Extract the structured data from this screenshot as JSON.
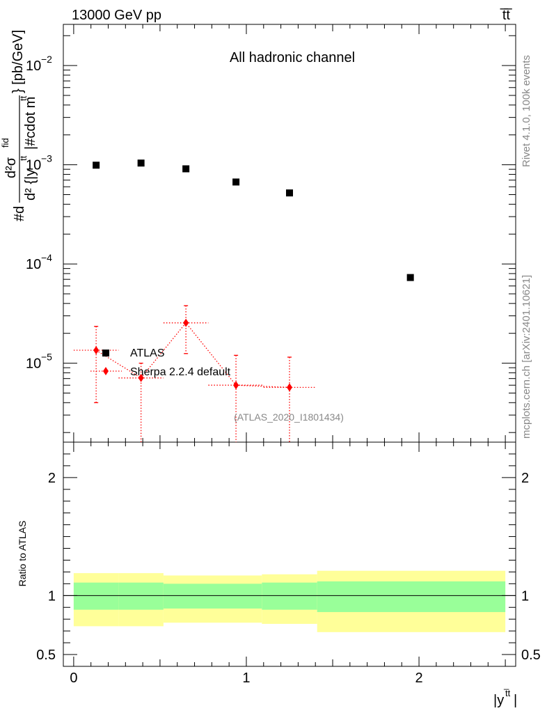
{
  "header": {
    "energy_label": "13000 GeV pp",
    "process_label": "t̅t̅"
  },
  "side_text": {
    "rivet": "Rivet 4.1.0,  100k events",
    "mcplots": "mcplots.cern.ch [arXiv:2401.10621]"
  },
  "colors": {
    "data": "#000000",
    "mc": "#ff0000",
    "band_inner": "#99ff99",
    "band_outer": "#ffff99"
  },
  "chart_data": {
    "type": "scatter",
    "title": "All hadronic channel",
    "analysis_id": "(ATLAS_2020_I1801434)",
    "ylabel": "#d²σ/d²{|y^{t̅t}|#cdot m^{t̅t}} [pb/GeV]",
    "ylabel_parts": {
      "hash_d": "#d",
      "num": "d²σ",
      "num_sup": "fid",
      "den": "d² {|y",
      "den_sup": "t̅t",
      "den_tail": "|#cdot m",
      "den_sup2": "t̅t",
      "units": "} [pb/GeV]"
    },
    "xlabel": "|y",
    "xlabel_sup": "t̅t",
    "xlabel_tail": "|",
    "xlim": [
      -0.06,
      2.56
    ],
    "ylim_log": [
      1.6e-06,
      0.026
    ],
    "x_ticks": [
      {
        "value": 0,
        "label": "0"
      },
      {
        "value": 1,
        "label": "1"
      },
      {
        "value": 2,
        "label": "2"
      }
    ],
    "y_ticks": [
      {
        "value": 1e-05,
        "mant": "10",
        "exp": "−5"
      },
      {
        "value": 0.0001,
        "mant": "10",
        "exp": "−4"
      },
      {
        "value": 0.001,
        "mant": "10",
        "exp": "−3"
      },
      {
        "value": 0.01,
        "mant": "10",
        "exp": "−2"
      }
    ],
    "legend": [
      {
        "name": "ATLAS"
      },
      {
        "name": "Sherpa 2.2.4 default"
      }
    ],
    "series": [
      {
        "name": "ATLAS",
        "x": [
          0.13,
          0.39,
          0.65,
          0.94,
          1.25,
          1.95
        ],
        "values": [
          0.00099,
          0.00104,
          0.00091,
          0.00067,
          0.00052,
          7.3e-05
        ]
      },
      {
        "name": "Sherpa 2.2.4 default",
        "x": [
          0.13,
          0.39,
          0.65,
          0.94,
          1.25
        ],
        "values": [
          1.35e-05,
          7.1e-06,
          2.55e-05,
          6e-06,
          5.7e-06
        ],
        "err_low": [
          4e-06,
          1e-06,
          1.25e-05,
          1e-06,
          1e-06
        ],
        "err_high": [
          2.35e-05,
          1e-05,
          3.8e-05,
          1.2e-05,
          1.15e-05
        ],
        "xerr": [
          0.13,
          0.13,
          0.13,
          0.16,
          0.15
        ]
      }
    ],
    "ratio": {
      "ylabel": "Ratio to ATLAS",
      "ylim": [
        0.4,
        2.3
      ],
      "y_ticks": [
        {
          "value": 0.5,
          "label": "0.5"
        },
        {
          "value": 1,
          "label": "1"
        },
        {
          "value": 2,
          "label": "2"
        }
      ],
      "bins": [
        {
          "lo": 0.0,
          "hi": 0.26,
          "inner": [
            0.88,
            1.11
          ],
          "outer": [
            0.74,
            1.19
          ]
        },
        {
          "lo": 0.26,
          "hi": 0.52,
          "inner": [
            0.88,
            1.11
          ],
          "outer": [
            0.74,
            1.19
          ]
        },
        {
          "lo": 0.52,
          "hi": 1.09,
          "inner": [
            0.89,
            1.1
          ],
          "outer": [
            0.77,
            1.17
          ]
        },
        {
          "lo": 1.09,
          "hi": 1.41,
          "inner": [
            0.88,
            1.11
          ],
          "outer": [
            0.76,
            1.18
          ]
        },
        {
          "lo": 1.41,
          "hi": 2.5,
          "inner": [
            0.86,
            1.12
          ],
          "outer": [
            0.69,
            1.21
          ]
        }
      ]
    }
  }
}
